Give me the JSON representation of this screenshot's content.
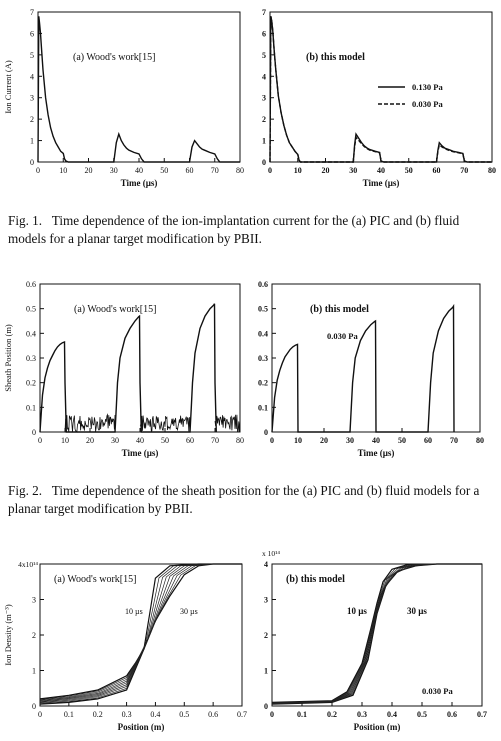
{
  "fig1": {
    "caption_label": "Fig. 1.",
    "caption_text": "Time dependence of the ion-implantation current for the (a) PIC and (b) fluid models for a planar target modification by PBII."
  },
  "fig2": {
    "caption_label": "Fig. 2.",
    "caption_text": "Time dependence of the sheath position for the (a) PIC and (b) fluid models for a planar target modification by PBII."
  },
  "chart_data": [
    {
      "type": "line",
      "panel_label": "(a) Wood's work[15]",
      "xlabel": "Time (µs)",
      "ylabel": "Ion Current (A)",
      "xlim": [
        0,
        80
      ],
      "ylim": [
        0,
        7
      ],
      "xticks": [
        "0",
        "10",
        "20",
        "30",
        "40",
        "50",
        "60",
        "70",
        "80"
      ],
      "yticks": [
        "0",
        "1",
        "2",
        "3",
        "4",
        "5",
        "6",
        "7"
      ],
      "series": [
        {
          "x": [
            0,
            0.3,
            0.6,
            1,
            1.5,
            2,
            3,
            4,
            5,
            6,
            7,
            8,
            9,
            10,
            10.5,
            11,
            12,
            20,
            30,
            31,
            32,
            33,
            34,
            35,
            36,
            38,
            40,
            41,
            42,
            50,
            60,
            61,
            62,
            63,
            64,
            65,
            66,
            68,
            70,
            71,
            72,
            80
          ],
          "y": [
            0,
            6.8,
            6.5,
            6.0,
            5.1,
            4.3,
            3.0,
            2.2,
            1.6,
            1.2,
            0.9,
            0.7,
            0.5,
            0.4,
            0.15,
            0.05,
            0,
            0,
            0,
            0.9,
            1.3,
            1.0,
            0.8,
            0.65,
            0.55,
            0.45,
            0.38,
            0.15,
            0,
            0,
            0,
            0.7,
            1.0,
            0.85,
            0.7,
            0.6,
            0.55,
            0.45,
            0.38,
            0.15,
            0,
            0
          ]
        }
      ]
    },
    {
      "type": "line",
      "panel_label": "(b) this model",
      "xlabel": "Time (µs)",
      "ylabel": "",
      "xlim": [
        0,
        80
      ],
      "ylim": [
        0,
        7
      ],
      "xticks": [
        "0",
        "10",
        "20",
        "30",
        "40",
        "50",
        "60",
        "70",
        "80"
      ],
      "yticks": [
        "0",
        "1",
        "2",
        "3",
        "4",
        "5",
        "6",
        "7"
      ],
      "legend": [
        "0.130 Pa",
        "0.030 Pa"
      ],
      "series": [
        {
          "name": "0.130 Pa",
          "x": [
            0,
            0.3,
            0.6,
            1,
            1.5,
            2,
            3,
            4,
            5,
            6,
            7,
            8,
            9,
            10,
            10.5,
            11,
            20,
            30,
            30.5,
            31,
            32,
            33,
            34,
            35,
            36,
            38,
            39.5,
            40,
            41,
            50,
            60,
            60.5,
            61,
            62,
            63,
            64,
            65,
            66,
            68,
            69.5,
            70,
            71,
            80
          ],
          "y": [
            0,
            6.8,
            6.6,
            6.1,
            5.2,
            4.4,
            3.1,
            2.3,
            1.7,
            1.25,
            0.9,
            0.7,
            0.5,
            0.35,
            0.08,
            0,
            0,
            0,
            0.8,
            1.3,
            1.1,
            0.9,
            0.75,
            0.65,
            0.58,
            0.5,
            0.45,
            0.05,
            0,
            0,
            0,
            0.55,
            0.9,
            0.75,
            0.65,
            0.6,
            0.55,
            0.5,
            0.45,
            0.4,
            0.05,
            0,
            0
          ]
        },
        {
          "name": "0.030 Pa",
          "x": [
            0,
            0.3,
            0.6,
            1,
            1.5,
            2,
            3,
            4,
            5,
            6,
            7,
            8,
            9,
            10,
            10.5,
            11,
            20,
            30,
            30.5,
            31,
            32,
            33,
            34,
            35,
            36,
            38,
            39.5,
            40,
            41,
            50,
            60,
            60.5,
            61,
            62,
            63,
            64,
            65,
            66,
            68,
            69.5,
            70,
            71,
            80
          ],
          "y": [
            0,
            6.8,
            6.6,
            6.1,
            5.2,
            4.4,
            3.1,
            2.3,
            1.7,
            1.25,
            0.9,
            0.7,
            0.5,
            0.35,
            0.08,
            0,
            0,
            0,
            0.7,
            1.15,
            1.0,
            0.85,
            0.72,
            0.62,
            0.55,
            0.48,
            0.43,
            0.05,
            0,
            0,
            0,
            0.5,
            0.8,
            0.7,
            0.62,
            0.57,
            0.52,
            0.48,
            0.43,
            0.38,
            0.05,
            0,
            0
          ]
        }
      ]
    },
    {
      "type": "line",
      "panel_label": "(a) Wood's work[15]",
      "xlabel": "Time (µs)",
      "ylabel": "Sheath Position (m)",
      "xlim": [
        0,
        80
      ],
      "ylim": [
        0,
        0.6
      ],
      "xticks": [
        "0",
        "10",
        "20",
        "30",
        "40",
        "50",
        "60",
        "70",
        "80"
      ],
      "yticks": [
        "0",
        "0.1",
        "0.2",
        "0.3",
        "0.4",
        "0.5",
        "0.6"
      ],
      "series": [
        {
          "x": [
            0,
            0.5,
            1,
            2,
            3,
            4,
            5,
            6,
            7,
            8,
            9,
            9.8,
            10,
            10.5,
            30,
            30.5,
            31,
            32,
            34,
            36,
            38,
            39.5,
            39.8,
            40,
            40.5,
            60,
            60.5,
            61,
            62,
            64,
            66,
            68,
            69.5,
            69.8,
            70,
            70.5
          ],
          "y": [
            0,
            0.08,
            0.15,
            0.22,
            0.26,
            0.29,
            0.31,
            0.33,
            0.345,
            0.355,
            0.362,
            0.365,
            0.2,
            0,
            0,
            0.1,
            0.2,
            0.3,
            0.38,
            0.42,
            0.45,
            0.468,
            0.47,
            0.2,
            0,
            0,
            0.1,
            0.2,
            0.32,
            0.42,
            0.47,
            0.5,
            0.515,
            0.52,
            0.2,
            0
          ]
        }
      ]
    },
    {
      "type": "line",
      "panel_label": "(b) this model",
      "annotation": "0.030 Pa",
      "xlabel": "Time (µs)",
      "ylabel": "",
      "xlim": [
        0,
        80
      ],
      "ylim": [
        0,
        0.6
      ],
      "xticks": [
        "0",
        "10",
        "20",
        "30",
        "40",
        "50",
        "60",
        "70",
        "80"
      ],
      "yticks": [
        "0",
        "0.1",
        "0.2",
        "0.3",
        "0.4",
        "0.5",
        "0.6"
      ],
      "series": [
        {
          "x": [
            0,
            0.5,
            1,
            2,
            3,
            4,
            5,
            6,
            7,
            8,
            9,
            9.8,
            10,
            30,
            30.5,
            31,
            32,
            34,
            36,
            38,
            39.5,
            39.8,
            40,
            60,
            60.5,
            61,
            62,
            64,
            66,
            68,
            69.5,
            69.8,
            70
          ],
          "y": [
            0,
            0.07,
            0.14,
            0.21,
            0.25,
            0.28,
            0.305,
            0.32,
            0.335,
            0.345,
            0.352,
            0.355,
            0,
            0,
            0.1,
            0.2,
            0.3,
            0.37,
            0.41,
            0.435,
            0.448,
            0.45,
            0,
            0,
            0.1,
            0.2,
            0.32,
            0.41,
            0.46,
            0.49,
            0.505,
            0.51,
            0
          ]
        }
      ]
    },
    {
      "type": "line",
      "panel_label": "(a) Wood's work[15]",
      "xlabel": "Position (m)",
      "ylabel": "Ion Density (m⁻³)",
      "xlim": [
        0,
        0.7
      ],
      "ylim": [
        0,
        4
      ],
      "xticks": [
        "0",
        "0.1",
        "0.2",
        "0.3",
        "0.4",
        "0.5",
        "0.6",
        "0.7"
      ],
      "yticks": [
        "0",
        "1",
        "2",
        "3"
      ],
      "ytop_label": "4x10¹⁴",
      "annotations": [
        "10 µs",
        "30 µs"
      ],
      "series": [
        {
          "name": "10 µs",
          "x": [
            0,
            0.1,
            0.2,
            0.3,
            0.33,
            0.36,
            0.38,
            0.4,
            0.45,
            0.55,
            0.7
          ],
          "y": [
            0.2,
            0.3,
            0.45,
            0.85,
            1.2,
            1.6,
            2.6,
            3.6,
            3.95,
            4.0,
            4.0
          ]
        },
        {
          "name": "30 µs",
          "x": [
            0,
            0.1,
            0.2,
            0.3,
            0.36,
            0.4,
            0.45,
            0.5,
            0.55,
            0.6,
            0.7
          ],
          "y": [
            0.05,
            0.1,
            0.2,
            0.45,
            1.6,
            2.4,
            3.1,
            3.7,
            3.95,
            4.0,
            4.0
          ]
        }
      ]
    },
    {
      "type": "line",
      "panel_label": "(b) this model",
      "annotation": "0.030 Pa",
      "xlabel": "Position (m)",
      "ylabel": "",
      "xlim": [
        0,
        0.7
      ],
      "ylim": [
        0,
        4
      ],
      "xticks": [
        "0",
        "0.1",
        "0.2",
        "0.3",
        "0.4",
        "0.5",
        "0.6",
        "0.7"
      ],
      "yticks": [
        "0",
        "1",
        "2",
        "3",
        "4"
      ],
      "ytop_label": "x 10¹⁴",
      "annotations": [
        "10 µs",
        "30 µs"
      ],
      "series": [
        {
          "name": "10 µs",
          "x": [
            0,
            0.2,
            0.25,
            0.3,
            0.33,
            0.35,
            0.37,
            0.4,
            0.45,
            0.55,
            0.7
          ],
          "y": [
            0.1,
            0.15,
            0.4,
            1.2,
            2.2,
            2.9,
            3.5,
            3.85,
            3.98,
            4.0,
            4.0
          ]
        },
        {
          "name": "30 µs",
          "x": [
            0,
            0.2,
            0.27,
            0.32,
            0.35,
            0.38,
            0.42,
            0.48,
            0.55,
            0.6,
            0.7
          ],
          "y": [
            0.05,
            0.1,
            0.3,
            1.3,
            2.6,
            3.4,
            3.8,
            3.95,
            4.0,
            4.0,
            4.0
          ]
        }
      ]
    }
  ]
}
